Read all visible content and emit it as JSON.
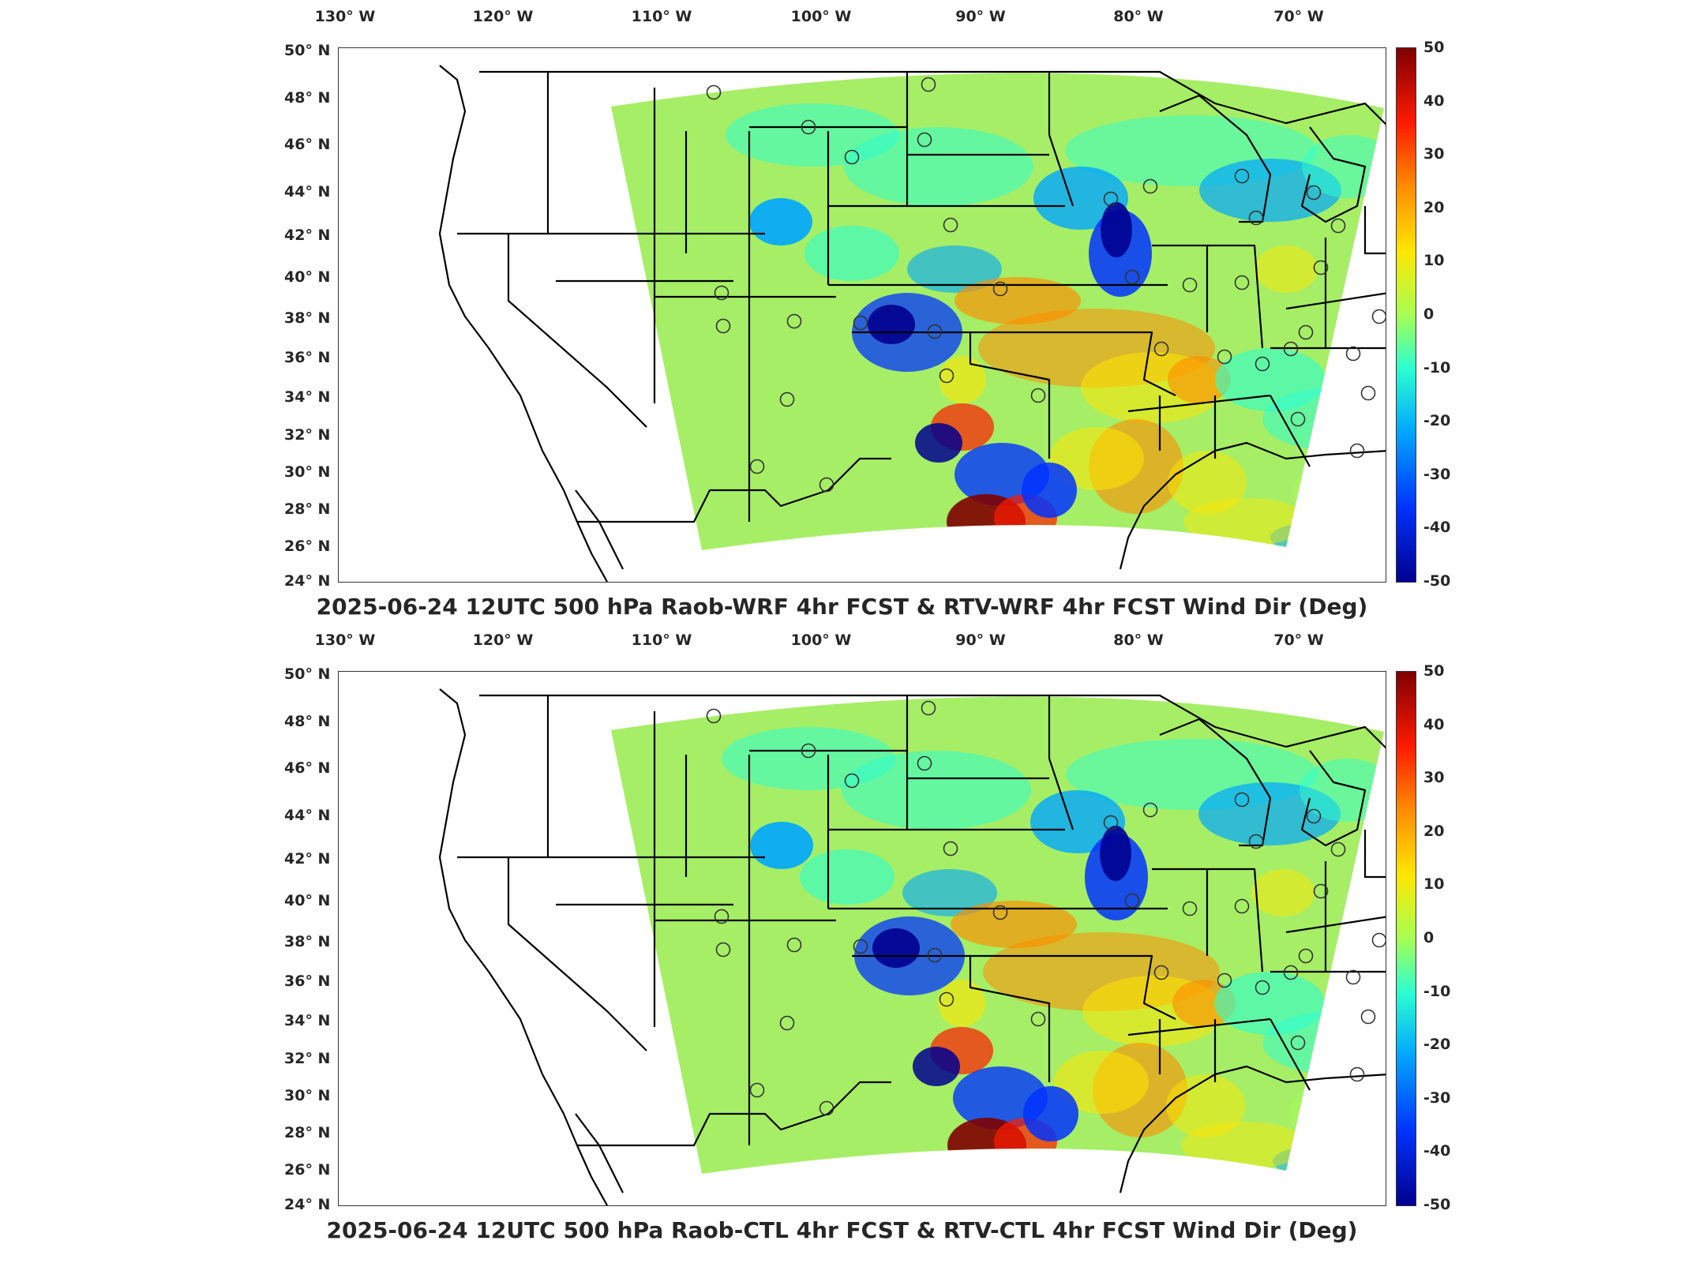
{
  "colors": {
    "field_background": "#a6ee66",
    "state_lines": "#000000",
    "station_marker": "#333333"
  },
  "longitude_labels": [
    "130° W",
    "120° W",
    "110° W",
    "100° W",
    "90° W",
    "80° W",
    "70° W"
  ],
  "latitude_labels": [
    "50° N",
    "48° N",
    "46° N",
    "44° N",
    "42° N",
    "40° N",
    "38° N",
    "36° N",
    "34° N",
    "32° N",
    "30° N",
    "28° N",
    "26° N",
    "24° N"
  ],
  "colorbar": {
    "range": [
      -50,
      50
    ],
    "colormap": "jet",
    "ticks": [
      "50",
      "40",
      "30",
      "20",
      "10",
      "0",
      "-10",
      "-20",
      "-30",
      "-40",
      "-50"
    ]
  },
  "panels": [
    {
      "title": "2025-06-24 12UTC 500 hPa Raob-WRF 4hr FCST & RTV-WRF 4hr FCST Wind Dir (Deg)"
    },
    {
      "title": "2025-06-24 12UTC 500 hPa Raob-CTL 4hr FCST & RTV-CTL 4hr FCST Wind Dir (Deg)"
    }
  ]
}
